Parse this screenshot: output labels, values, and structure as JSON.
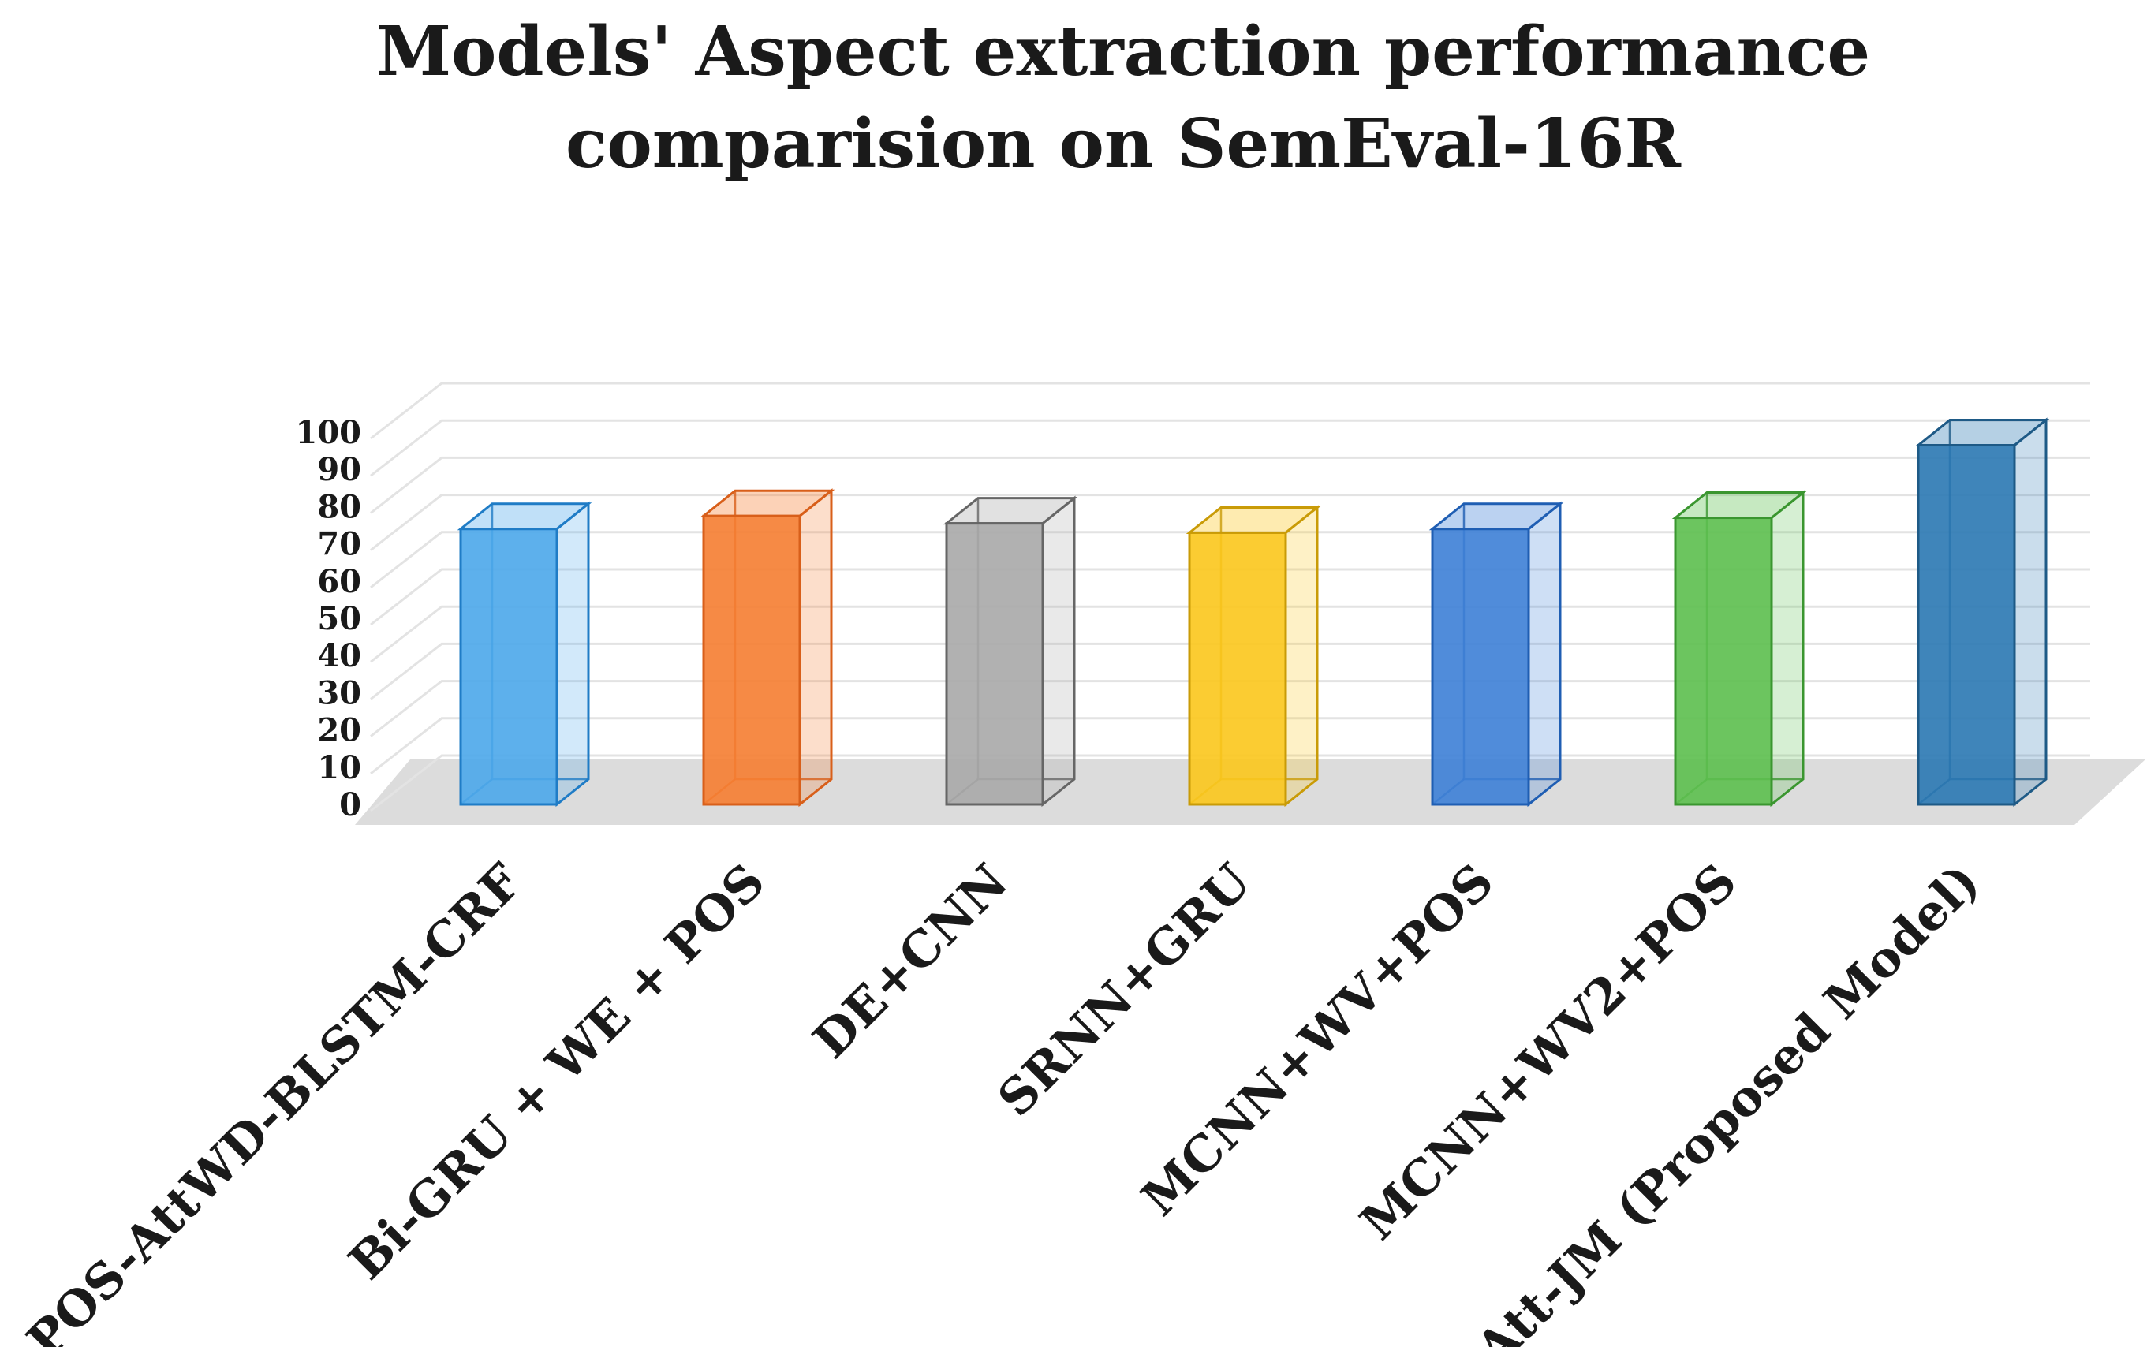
{
  "chart_data": {
    "type": "bar",
    "style": "3d-column",
    "title": "Models' Aspect extraction performance comparision on SemEval-16R",
    "title_lines": [
      "Models' Aspect extraction performance",
      "comparision on SemEval-16R"
    ],
    "xlabel": "",
    "ylabel": "",
    "ylim": [
      0,
      100
    ],
    "yticks": [
      0,
      10,
      20,
      30,
      40,
      50,
      60,
      70,
      80,
      90,
      100
    ],
    "grid": true,
    "legend": "none",
    "categories": [
      "POS-AttWD-BLSTM-CRF",
      "Bi-GRU + WE + POS",
      "DE+CNN",
      "SRNN+GRU",
      "MCNN+WV+POS",
      "MCNN+WV2+POS",
      "Att-JM (Proposed Model)"
    ],
    "values": [
      74.0,
      77.5,
      75.5,
      73.0,
      74.0,
      77.0,
      96.5
    ],
    "colors": [
      "#4ba7ea",
      "#f57d31",
      "#a9a9a9",
      "#fbc61c",
      "#3d7fd6",
      "#5cbf4e",
      "#2a78b2"
    ],
    "edge_colors": [
      "#1f7cc6",
      "#d85f1a",
      "#666666",
      "#c99b07",
      "#1f5eb3",
      "#3a962f",
      "#1e5a86"
    ]
  }
}
